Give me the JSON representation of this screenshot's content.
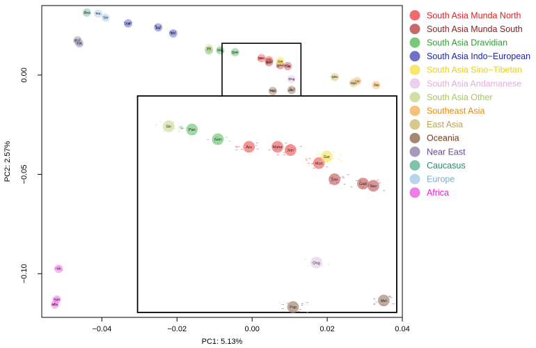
{
  "chart_data": {
    "type": "scatter",
    "xlabel": "PC1: 5.13%",
    "ylabel": "PC2: 2.57%",
    "xlim": [
      -0.056,
      0.04
    ],
    "ylim": [
      -0.122,
      0.035
    ],
    "xticks": [
      -0.04,
      -0.02,
      0.0,
      0.02,
      0.04
    ],
    "xtick_labels": [
      "−0.04",
      "−0.02",
      "0.00",
      "0.02",
      "0.04"
    ],
    "yticks": [
      0.0,
      -0.05,
      -0.1
    ],
    "ytick_labels": [
      "0.00",
      "−0.05",
      "−0.10"
    ],
    "zoom_box": {
      "x_range": [
        -0.008,
        0.013
      ],
      "y_range": [
        -0.011,
        0.016
      ]
    },
    "legend": [
      {
        "name": "South Asia Munda North",
        "color": "#F26B6B"
      },
      {
        "name": "South Asia Munda South",
        "color": "#C96A6A"
      },
      {
        "name": "South Asia Dravidian",
        "color": "#79C97B"
      },
      {
        "name": "South Asia Indo−European",
        "color": "#6E73C8"
      },
      {
        "name": "South Asia Sino−Tibetan",
        "color": "#F7E76A"
      },
      {
        "name": "South Asia Andamanese",
        "color": "#EBD0EE"
      },
      {
        "name": "South Asia Other",
        "color": "#CFE0A2"
      },
      {
        "name": "Southeast Asia",
        "color": "#F6C27A"
      },
      {
        "name": "East Asia",
        "color": "#D9C88C"
      },
      {
        "name": "Oceania",
        "color": "#A58772"
      },
      {
        "name": "Near East",
        "color": "#A899BB"
      },
      {
        "name": "Caucasus",
        "color": "#7FC3AC"
      },
      {
        "name": "Europe",
        "color": "#B8D3EE"
      },
      {
        "name": "Africa",
        "color": "#EE7DE6"
      }
    ],
    "legend_text_colors": [
      "#E41A1C",
      "#8B1A1A",
      "#2E9E2E",
      "#1F23A0",
      "#E6D21A",
      "#E3AEE0",
      "#A7C957",
      "#EE8A00",
      "#B8A25A",
      "#6B3A1A",
      "#6A4C8E",
      "#1B8F6E",
      "#7FA8D9",
      "#E020D0"
    ],
    "groups": [
      {
        "name": "South Asia Munda North",
        "centroids": [
          {
            "label": "Mun",
            "x": 0.0025,
            "y": 0.0085
          },
          {
            "label": "San",
            "x": 0.0045,
            "y": 0.0075
          }
        ]
      },
      {
        "name": "South Asia Munda South",
        "centroids": [
          {
            "label": "Bon",
            "x": 0.0045,
            "y": 0.0065
          },
          {
            "label": "Gad",
            "x": 0.0075,
            "y": 0.005
          },
          {
            "label": "Sav",
            "x": 0.0095,
            "y": 0.0045
          }
        ]
      },
      {
        "name": "South Asia Dravidian",
        "centroids": [
          {
            "label": "Irul",
            "x": -0.0115,
            "y": 0.0125
          },
          {
            "label": "Pan",
            "x": -0.0085,
            "y": 0.0125
          },
          {
            "label": "Gon",
            "x": -0.0045,
            "y": 0.0115
          }
        ]
      },
      {
        "name": "South Asia Indo−European",
        "centroids": [
          {
            "label": "Kal",
            "x": -0.033,
            "y": 0.026
          },
          {
            "label": "Bra",
            "x": -0.025,
            "y": 0.024
          },
          {
            "label": "Bhi",
            "x": -0.021,
            "y": 0.021
          }
        ]
      },
      {
        "name": "South Asia Sino−Tibetan",
        "centroids": [
          {
            "label": "Gar",
            "x": 0.0075,
            "y": 0.007
          }
        ]
      },
      {
        "name": "South Asia Andamanese",
        "centroids": [
          {
            "label": "Ong",
            "x": 0.0105,
            "y": -0.002
          }
        ]
      },
      {
        "name": "South Asia Other",
        "centroids": [
          {
            "label": "Sin",
            "x": -0.0115,
            "y": 0.0135
          }
        ]
      },
      {
        "name": "Southeast Asia",
        "centroids": [
          {
            "label": "Kin",
            "x": 0.028,
            "y": -0.003
          },
          {
            "label": "Dai",
            "x": 0.033,
            "y": -0.005
          }
        ]
      },
      {
        "name": "East Asia",
        "centroids": [
          {
            "label": "Han",
            "x": 0.027,
            "y": -0.004
          },
          {
            "label": "She",
            "x": 0.022,
            "y": -0.001
          }
        ]
      },
      {
        "name": "Oceania",
        "centroids": [
          {
            "label": "Pap",
            "x": 0.0055,
            "y": -0.008
          },
          {
            "label": "Mel",
            "x": 0.0105,
            "y": -0.0075
          }
        ]
      },
      {
        "name": "Near East",
        "centroids": [
          {
            "label": "Bed",
            "x": -0.0465,
            "y": 0.0175
          },
          {
            "label": "Pal",
            "x": -0.046,
            "y": 0.016
          }
        ]
      },
      {
        "name": "Caucasus",
        "centroids": [
          {
            "label": "Geo",
            "x": -0.044,
            "y": 0.0315
          }
        ]
      },
      {
        "name": "Europe",
        "centroids": [
          {
            "label": "Fre",
            "x": -0.041,
            "y": 0.031
          },
          {
            "label": "Sar",
            "x": -0.039,
            "y": 0.029
          }
        ]
      },
      {
        "name": "Africa",
        "centroids": [
          {
            "label": "San",
            "x": -0.052,
            "y": -0.113
          },
          {
            "label": "Mbu",
            "x": -0.0525,
            "y": -0.1155
          },
          {
            "label": "Yor",
            "x": -0.0515,
            "y": -0.0975
          }
        ]
      }
    ],
    "inset_labels": [
      "Sin",
      "Pan",
      "Gon",
      "Aru",
      "Mahe",
      "San",
      "Mun",
      "Gar",
      "Sav",
      "Gad",
      "Sav",
      "Ong",
      "Pap",
      "Mel"
    ]
  }
}
